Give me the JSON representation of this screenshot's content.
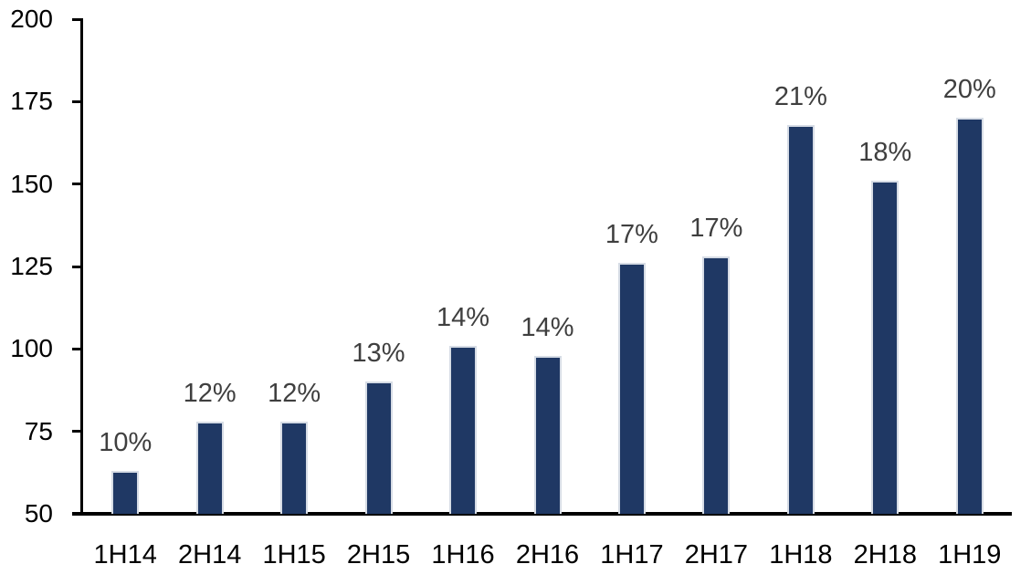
{
  "chart_data": {
    "type": "bar",
    "title": "",
    "xlabel": "",
    "ylabel": "",
    "categories": [
      "1H14",
      "2H14",
      "1H15",
      "2H15",
      "1H16",
      "2H16",
      "1H17",
      "2H17",
      "1H18",
      "2H18",
      "1H19"
    ],
    "values": [
      63,
      78,
      78,
      90,
      101,
      98,
      126,
      128,
      168,
      151,
      170
    ],
    "bar_labels": [
      "10%",
      "12%",
      "12%",
      "13%",
      "14%",
      "14%",
      "17%",
      "17%",
      "21%",
      "18%",
      "20%"
    ],
    "ylim": [
      50,
      200
    ],
    "yticks": [
      50,
      75,
      100,
      125,
      150,
      175,
      200
    ],
    "grid": false,
    "legend_position": "none",
    "colors": {
      "bar_fill": "#1F3864",
      "bar_border": "#D6DCE5",
      "data_label": "#3F3F3F",
      "axis": "#000000",
      "tick_label": "#000000",
      "background": "#FFFFFF"
    }
  }
}
